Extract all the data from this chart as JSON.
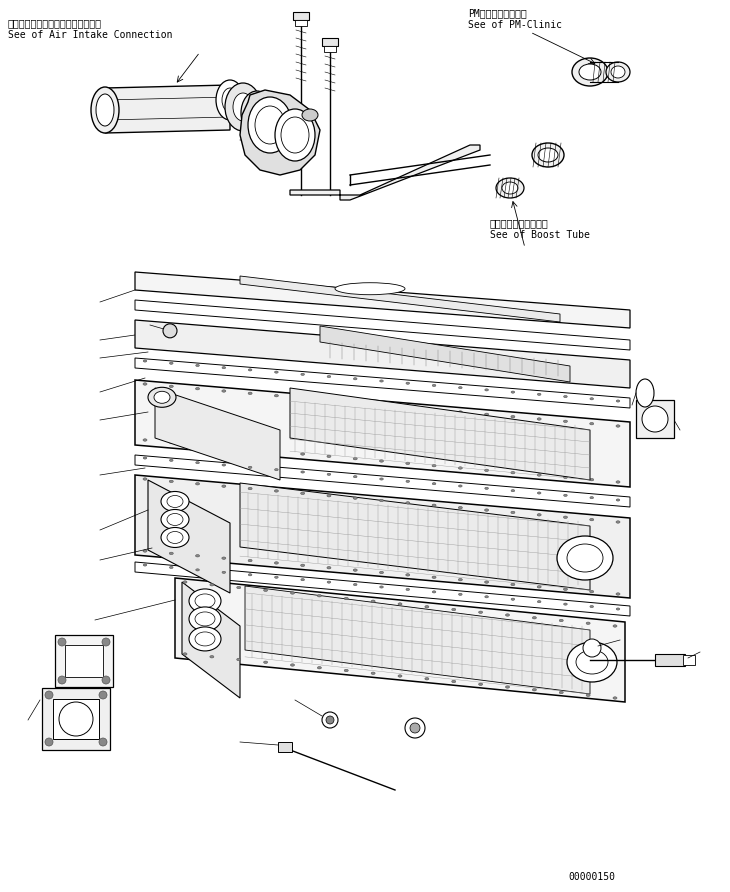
{
  "bg_color": "#ffffff",
  "line_color": "#000000",
  "fig_width": 7.3,
  "fig_height": 8.92,
  "dpi": 100,
  "ann_air_jp": "エアーインテークコネクション参照",
  "ann_air_en": "See of Air Intake Connection",
  "ann_pm_jp": "PM－クリニック参照",
  "ann_pm_en": "See of PM-Clinic",
  "ann_boost_jp": "ブーストチューブ参照",
  "ann_boost_en": "See of Boost Tube",
  "part_number": "00000150"
}
